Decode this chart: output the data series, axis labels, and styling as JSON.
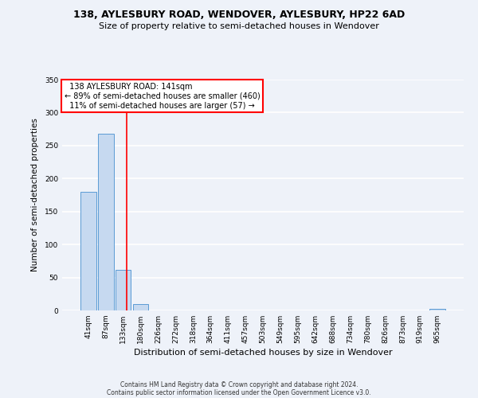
{
  "title1": "138, AYLESBURY ROAD, WENDOVER, AYLESBURY, HP22 6AD",
  "title2": "Size of property relative to semi-detached houses in Wendover",
  "xlabel": "Distribution of semi-detached houses by size in Wendover",
  "ylabel": "Number of semi-detached properties",
  "bin_labels": [
    "41sqm",
    "87sqm",
    "133sqm",
    "180sqm",
    "226sqm",
    "272sqm",
    "318sqm",
    "364sqm",
    "411sqm",
    "457sqm",
    "503sqm",
    "549sqm",
    "595sqm",
    "642sqm",
    "688sqm",
    "734sqm",
    "780sqm",
    "826sqm",
    "873sqm",
    "919sqm",
    "965sqm"
  ],
  "bar_values": [
    180,
    268,
    62,
    10,
    0,
    0,
    0,
    0,
    0,
    0,
    0,
    0,
    0,
    0,
    0,
    0,
    0,
    0,
    0,
    0,
    2
  ],
  "bar_color": "#c6d9f0",
  "bar_edge_color": "#5b9bd5",
  "property_line_x": 2.18,
  "property_label": "138 AYLESBURY ROAD: 141sqm",
  "smaller_pct": "89%",
  "smaller_count": 460,
  "larger_pct": "11%",
  "larger_count": 57,
  "annotation_box_color": "white",
  "annotation_box_edge_color": "red",
  "vline_color": "red",
  "ylim": [
    0,
    350
  ],
  "yticks": [
    0,
    50,
    100,
    150,
    200,
    250,
    300,
    350
  ],
  "footer1": "Contains HM Land Registry data © Crown copyright and database right 2024.",
  "footer2": "Contains public sector information licensed under the Open Government Licence v3.0.",
  "background_color": "#eef2f9",
  "grid_color": "#ffffff",
  "title1_fontsize": 9,
  "title2_fontsize": 8,
  "xlabel_fontsize": 8,
  "ylabel_fontsize": 7.5,
  "tick_fontsize": 6.5,
  "footer_fontsize": 5.5,
  "annot_fontsize": 7
}
